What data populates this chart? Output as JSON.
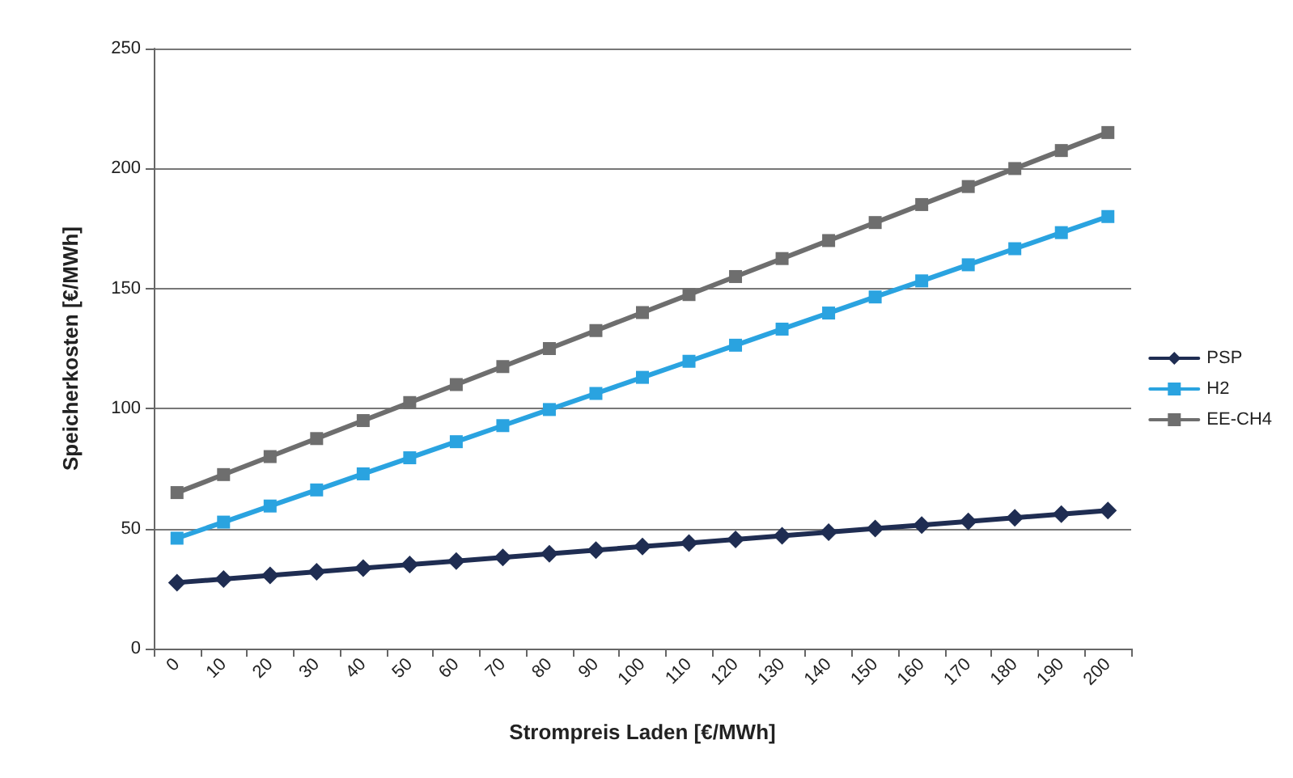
{
  "chart_data": {
    "type": "line",
    "xlabel": "Strompreis Laden [€/MWh]",
    "ylabel": "Speicherkosten [€/MWh]",
    "categories": [
      "0",
      "10",
      "20",
      "30",
      "40",
      "50",
      "60",
      "70",
      "80",
      "90",
      "100",
      "110",
      "120",
      "130",
      "140",
      "150",
      "160",
      "170",
      "180",
      "190",
      "200"
    ],
    "series": [
      {
        "name": "PSP",
        "color": "#1f2d52",
        "marker": "diamond",
        "values": [
          27.5,
          29,
          30.5,
          32,
          33.5,
          35,
          36.5,
          38,
          39.5,
          41,
          42.5,
          44,
          45.5,
          47,
          48.5,
          50,
          51.5,
          53,
          54.5,
          56,
          57.5
        ]
      },
      {
        "name": "H2",
        "color": "#2aa3e0",
        "marker": "square",
        "values": [
          46,
          52.7,
          59.4,
          66.1,
          72.8,
          79.5,
          86.2,
          92.9,
          99.6,
          106.3,
          113,
          119.7,
          126.4,
          133.1,
          139.8,
          146.5,
          153.2,
          159.9,
          166.6,
          173.3,
          180
        ]
      },
      {
        "name": "EE-CH4",
        "color": "#6e6e6e",
        "marker": "square",
        "values": [
          65,
          72.5,
          80,
          87.5,
          95,
          102.5,
          110,
          117.5,
          125,
          132.5,
          140,
          147.5,
          155,
          162.5,
          170,
          177.5,
          185,
          192.5,
          200,
          207.5,
          215
        ]
      }
    ],
    "ylim": [
      0,
      250
    ],
    "yticks": [
      0,
      50,
      100,
      150,
      200,
      250
    ],
    "grid": "y",
    "legend": "right",
    "line_style": "solid"
  }
}
